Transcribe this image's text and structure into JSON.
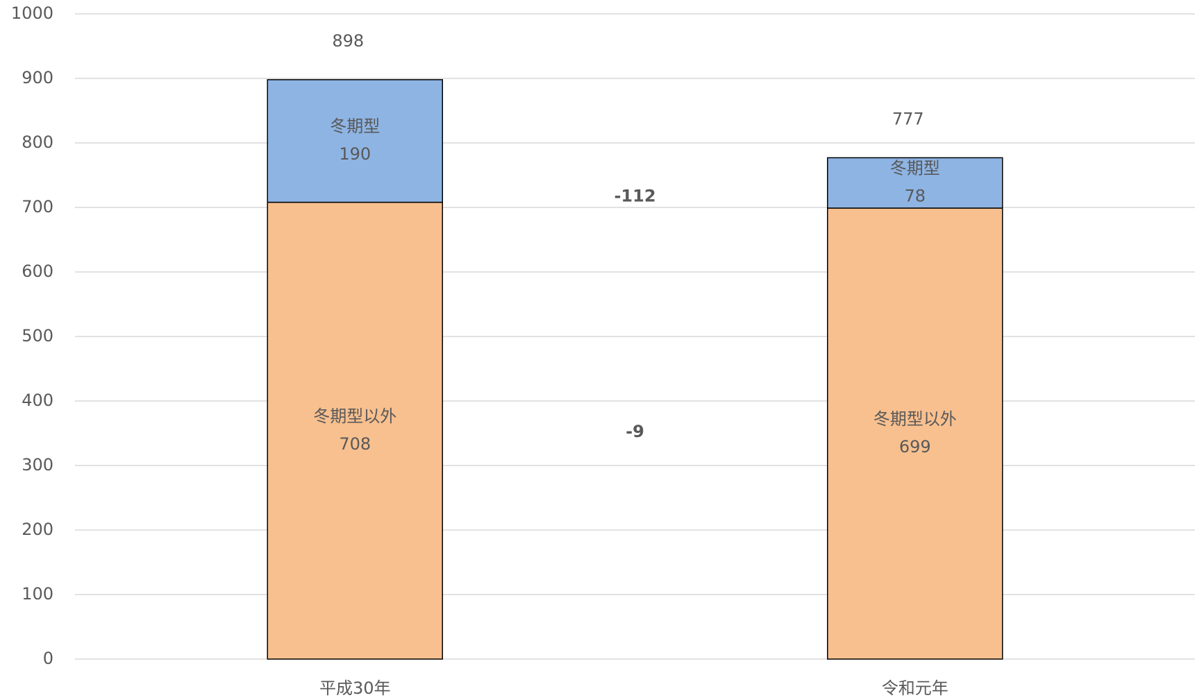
{
  "chart_data": {
    "type": "stacked_bar",
    "categories": [
      "平成30年",
      "令和元年"
    ],
    "series": [
      {
        "name": "冬期型以外",
        "color": "#f8c08f",
        "values": [
          708,
          699
        ],
        "change": -9
      },
      {
        "name": "冬期型",
        "color": "#8eb4e3",
        "values": [
          190,
          78
        ],
        "change": -112
      }
    ],
    "totals": [
      898,
      777
    ],
    "ylim": [
      0,
      1000
    ],
    "yticks": [
      0,
      100,
      200,
      300,
      400,
      500,
      600,
      700,
      800,
      900,
      1000
    ],
    "grid": true
  }
}
